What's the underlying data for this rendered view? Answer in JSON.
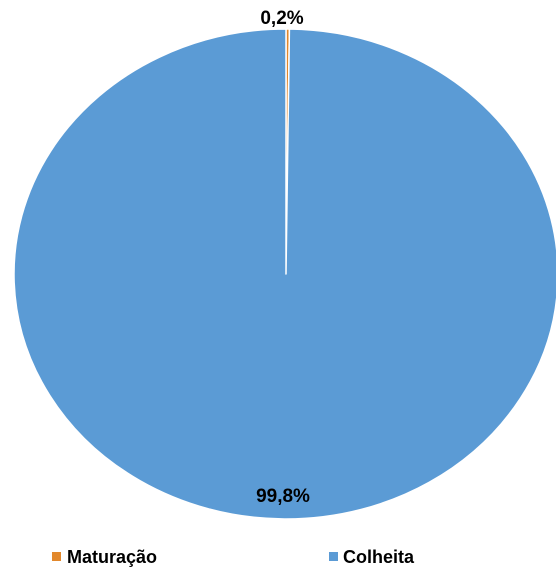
{
  "chart_data": {
    "type": "pie",
    "categories": [
      "Maturação",
      "Colheita"
    ],
    "values": [
      0.2,
      99.8
    ],
    "data_labels": [
      "0,2%",
      "99,8%"
    ],
    "colors": [
      "#E2882C",
      "#5B9BD5"
    ],
    "legend": [
      "Maturação",
      "Colheita"
    ],
    "legend_position": "bottom"
  }
}
